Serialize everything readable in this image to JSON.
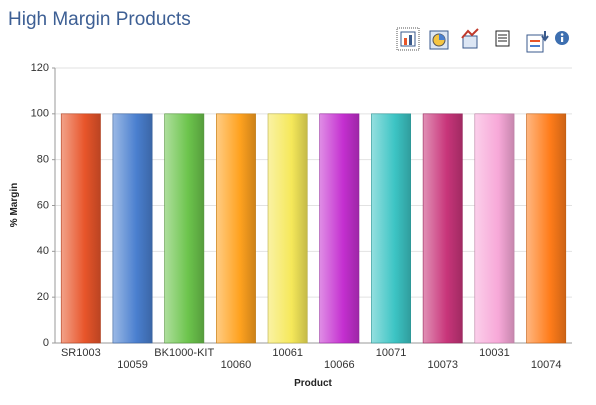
{
  "chart_data": {
    "type": "bar",
    "title": "High Margin Products",
    "x_label": "Product",
    "y_label": "% Margin",
    "categories": [
      "SR1003",
      "10059",
      "BK1000-KIT",
      "10060",
      "10061",
      "10066",
      "10071",
      "10073",
      "10031",
      "10074"
    ],
    "values": [
      100,
      100,
      100,
      100,
      100,
      100,
      100,
      100,
      100,
      100
    ],
    "colors": [
      "#e8552a",
      "#4a7fcf",
      "#6cc44c",
      "#ffa21f",
      "#f5e85a",
      "#c42fd0",
      "#3cc4c4",
      "#c8357a",
      "#f7a8d8",
      "#ff7c1a"
    ],
    "ylim": [
      0,
      120
    ],
    "yticks": [
      0,
      20,
      40,
      60,
      80,
      100,
      120
    ],
    "grid": true
  }
}
